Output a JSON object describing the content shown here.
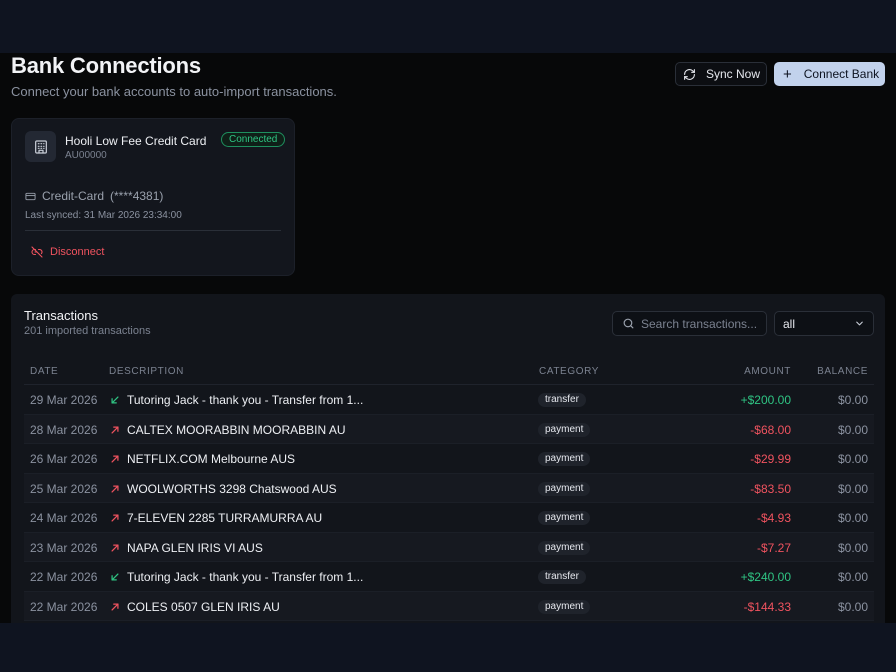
{
  "header": {
    "title": "Bank Connections",
    "subtitle": "Connect your bank accounts to auto-import transactions.",
    "sync_label": "Sync Now",
    "connect_label": "Connect Bank"
  },
  "bank": {
    "name": "Hooli Low Fee Credit Card",
    "id": "AU00000",
    "status": "Connected",
    "account_type": "Credit-Card",
    "account_mask": "(****4381)",
    "last_synced": "Last synced: 31 Mar 2026 23:34:00",
    "disconnect_label": "Disconnect"
  },
  "transactions": {
    "title": "Transactions",
    "count_text": "201 imported transactions",
    "search_placeholder": "Search transactions...",
    "filter_value": "all",
    "columns": {
      "date": "DATE",
      "description": "DESCRIPTION",
      "category": "CATEGORY",
      "amount": "AMOUNT",
      "balance": "BALANCE"
    },
    "rows": [
      {
        "date": "29 Mar 2026",
        "direction": "in",
        "description": "Tutoring Jack - thank you - Transfer from 1...",
        "category": "transfer",
        "amount": "+$200.00",
        "balance": "$0.00"
      },
      {
        "date": "28 Mar 2026",
        "direction": "out",
        "description": "CALTEX MOORABBIN MOORABBIN AU",
        "category": "payment",
        "amount": "-$68.00",
        "balance": "$0.00"
      },
      {
        "date": "26 Mar 2026",
        "direction": "out",
        "description": "NETFLIX.COM Melbourne AUS",
        "category": "payment",
        "amount": "-$29.99",
        "balance": "$0.00"
      },
      {
        "date": "25 Mar 2026",
        "direction": "out",
        "description": "WOOLWORTHS 3298 Chatswood AUS",
        "category": "payment",
        "amount": "-$83.50",
        "balance": "$0.00"
      },
      {
        "date": "24 Mar 2026",
        "direction": "out",
        "description": "7-ELEVEN 2285 TURRAMURRA AU",
        "category": "payment",
        "amount": "-$4.93",
        "balance": "$0.00"
      },
      {
        "date": "23 Mar 2026",
        "direction": "out",
        "description": "NAPA GLEN IRIS VI AUS",
        "category": "payment",
        "amount": "-$7.27",
        "balance": "$0.00"
      },
      {
        "date": "22 Mar 2026",
        "direction": "in",
        "description": "Tutoring Jack - thank you - Transfer from 1...",
        "category": "transfer",
        "amount": "+$240.00",
        "balance": "$0.00"
      },
      {
        "date": "22 Mar 2026",
        "direction": "out",
        "description": "COLES 0507 GLEN IRIS AU",
        "category": "payment",
        "amount": "-$144.33",
        "balance": "$0.00"
      }
    ]
  },
  "colors": {
    "positive": "#2fc483",
    "negative": "#f0535f",
    "accent_button": "#c2d2ec"
  }
}
